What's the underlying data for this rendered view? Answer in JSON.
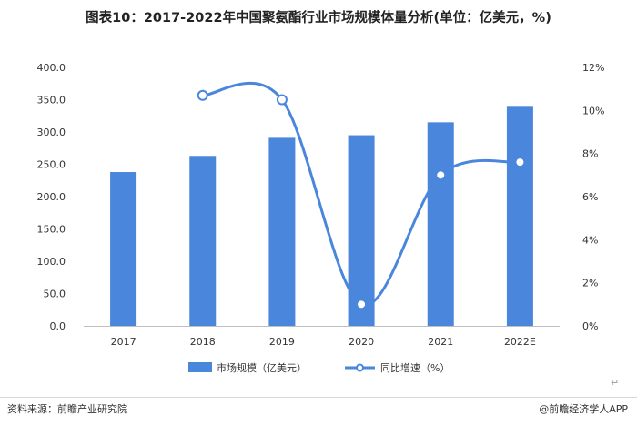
{
  "page": {
    "title": "图表10：2017-2022年中国聚氨酯行业市场规模体量分析(单位：亿美元，%)",
    "source": "资料来源：前瞻产业研究院",
    "credit": "@前瞻经济学人APP",
    "return_mark": "↵"
  },
  "chart_data": {
    "type": "bar+line",
    "categories": [
      "2017",
      "2018",
      "2019",
      "2020",
      "2021",
      "2022E"
    ],
    "series": [
      {
        "name": "市场规模（亿美元）",
        "type": "bar",
        "axis": "left",
        "color": "#4a86db",
        "values": [
          238,
          263,
          291,
          295,
          315,
          339
        ]
      },
      {
        "name": "同比增速（%）",
        "type": "line",
        "axis": "right",
        "color": "#4a86db",
        "values": [
          null,
          10.7,
          10.5,
          1.0,
          7.0,
          7.6
        ]
      }
    ],
    "left_axis": {
      "min": 0,
      "max": 400,
      "step": 50,
      "ticks": [
        "0.0",
        "50.0",
        "100.0",
        "150.0",
        "200.0",
        "250.0",
        "300.0",
        "350.0",
        "400.0"
      ]
    },
    "right_axis": {
      "min": 0,
      "max": 12,
      "step": 2,
      "ticks": [
        "0%",
        "2%",
        "4%",
        "6%",
        "8%",
        "10%",
        "12%"
      ]
    },
    "grid": false,
    "legend_position": "bottom"
  }
}
